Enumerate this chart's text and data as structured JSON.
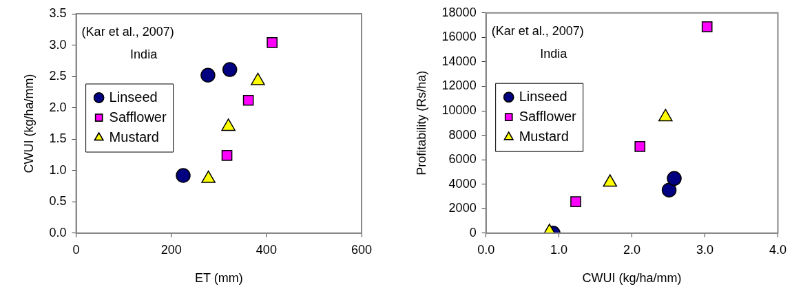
{
  "chart_data": [
    {
      "type": "scatter",
      "xlabel": "ET (mm)",
      "ylabel": "CWUI (kg/ha/mm)",
      "annotations": [
        "(Kar et al., 2007)",
        "India"
      ],
      "xlim": [
        0,
        600
      ],
      "xticks": [
        0,
        200,
        400,
        600
      ],
      "ylim": [
        0,
        3.5
      ],
      "yticks": [
        {
          "value": 0,
          "label": "0.0"
        },
        0.5,
        {
          "value": 1,
          "label": "1.0"
        },
        1.5,
        {
          "value": 2,
          "label": "2.0"
        },
        2.5,
        {
          "value": 3,
          "label": "3.0"
        },
        3.5
      ],
      "grid": false,
      "legend": "left",
      "series": [
        {
          "name": "Linseed",
          "color": "#000080",
          "marker": "circle",
          "x": [
            225,
            277,
            323
          ],
          "values": [
            0.92,
            2.52,
            2.61
          ]
        },
        {
          "name": "Safflower",
          "color": "#ff00ff",
          "marker": "square",
          "x": [
            317,
            362,
            412
          ],
          "values": [
            1.24,
            2.12,
            3.04
          ]
        },
        {
          "name": "Mustard",
          "color": "#ffff00",
          "marker": "triangle",
          "x": [
            278,
            320,
            382
          ],
          "values": [
            0.87,
            1.7,
            2.43
          ]
        }
      ]
    },
    {
      "type": "scatter",
      "xlabel": "CWUI (kg/ha/mm)",
      "ylabel": "Profitability (Rs/ha)",
      "annotations": [
        "(Kar et al., 2007)",
        "India"
      ],
      "xlim": [
        0,
        4
      ],
      "xticks": [
        {
          "value": 0,
          "label": "0.0"
        },
        {
          "value": 1,
          "label": "1.0"
        },
        {
          "value": 2,
          "label": "2.0"
        },
        {
          "value": 3,
          "label": "3.0"
        },
        {
          "value": 4,
          "label": "4.0"
        }
      ],
      "ylim": [
        0,
        18000
      ],
      "yticks": [
        0,
        2000,
        4000,
        6000,
        8000,
        10000,
        12000,
        14000,
        16000,
        18000
      ],
      "grid": false,
      "legend": "left",
      "series": [
        {
          "name": "Linseed",
          "color": "#000080",
          "marker": "circle",
          "x": [
            0.92,
            2.51,
            2.58
          ],
          "values": [
            0,
            3520,
            4470
          ]
        },
        {
          "name": "Safflower",
          "color": "#ff00ff",
          "marker": "square",
          "x": [
            1.23,
            2.11,
            3.03
          ],
          "values": [
            2570,
            7080,
            16870
          ]
        },
        {
          "name": "Mustard",
          "color": "#ffff00",
          "marker": "triangle",
          "x": [
            0.87,
            1.7,
            2.46
          ],
          "values": [
            110,
            4150,
            9500
          ]
        }
      ]
    }
  ]
}
